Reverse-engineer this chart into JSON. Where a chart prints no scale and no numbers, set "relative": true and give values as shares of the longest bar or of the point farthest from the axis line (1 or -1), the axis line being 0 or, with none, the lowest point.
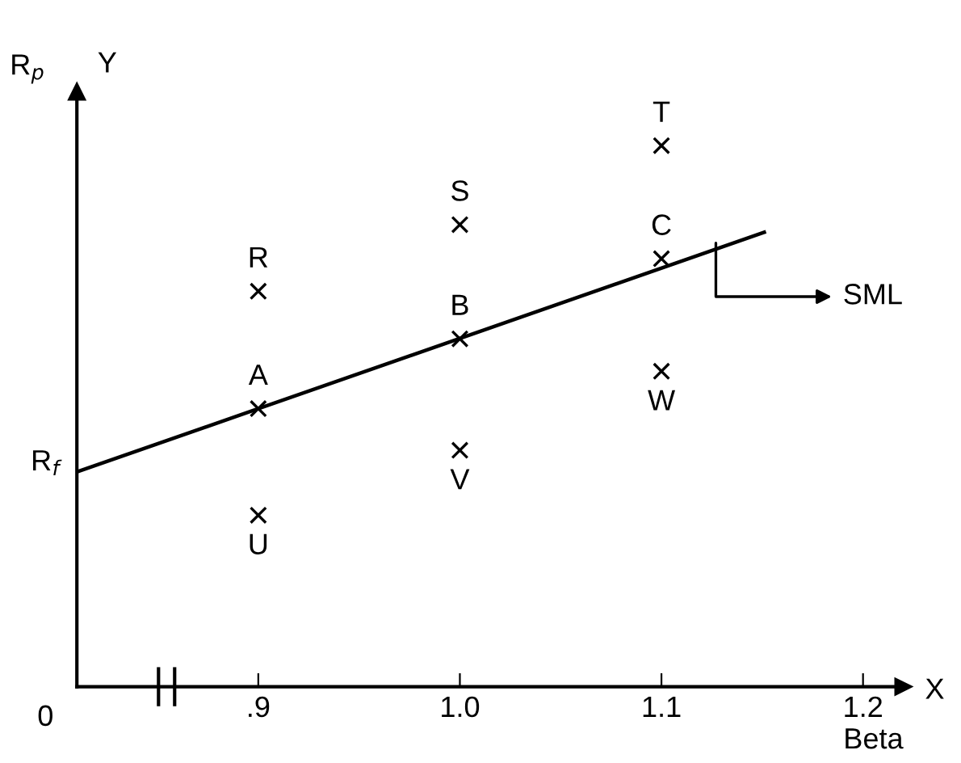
{
  "chart_data": {
    "type": "scatter",
    "relative": true,
    "xlabel": "Beta",
    "ylabel": "Y",
    "xlim": [
      0.81,
      1.22
    ],
    "xticks": [
      {
        "value": 0.9,
        "label": ".9"
      },
      {
        "value": 1.0,
        "label": "1.0"
      },
      {
        "value": 1.1,
        "label": "1.1"
      },
      {
        "value": 1.2,
        "label": "1.2"
      }
    ],
    "grid": false,
    "legend": false,
    "marker": "cross",
    "series": [
      {
        "color": "#000000",
        "x": [
          0.9,
          0.9,
          0.9,
          1.0,
          1.0,
          1.0,
          1.1,
          1.1,
          1.1
        ],
        "values": [
          0.514,
          0.731,
          0.317,
          0.643,
          0.854,
          0.437,
          0.791,
          1.0,
          0.583
        ]
      },
      {
        "type": "line",
        "marker": "none",
        "color": "#000000",
        "x": [
          0.81,
          1.151
        ],
        "values": [
          0.397,
          0.84
        ]
      }
    ],
    "annotations": [
      "0",
      "X",
      "R$_{p}$",
      {
        "text": "A",
        "x": 0.9,
        "y": 0.514
      },
      {
        "text": "R",
        "x": 0.9,
        "y": 0.731
      },
      {
        "text": "U",
        "x": 0.9,
        "y": 0.317
      },
      {
        "text": "B",
        "x": 1.0,
        "y": 0.643
      },
      {
        "text": "S",
        "x": 1.0,
        "y": 0.854
      },
      {
        "text": "V",
        "x": 1.0,
        "y": 0.437
      },
      {
        "text": "C",
        "x": 1.1,
        "y": 0.791
      },
      {
        "text": "T",
        "x": 1.1,
        "y": 1.0
      },
      {
        "text": "W",
        "x": 1.1,
        "y": 0.583
      },
      {
        "text": "R$_{f}$",
        "x": 0.81,
        "y": 0.397
      },
      {
        "text": "SML",
        "x": 1.127,
        "y": 0.82
      }
    ]
  }
}
